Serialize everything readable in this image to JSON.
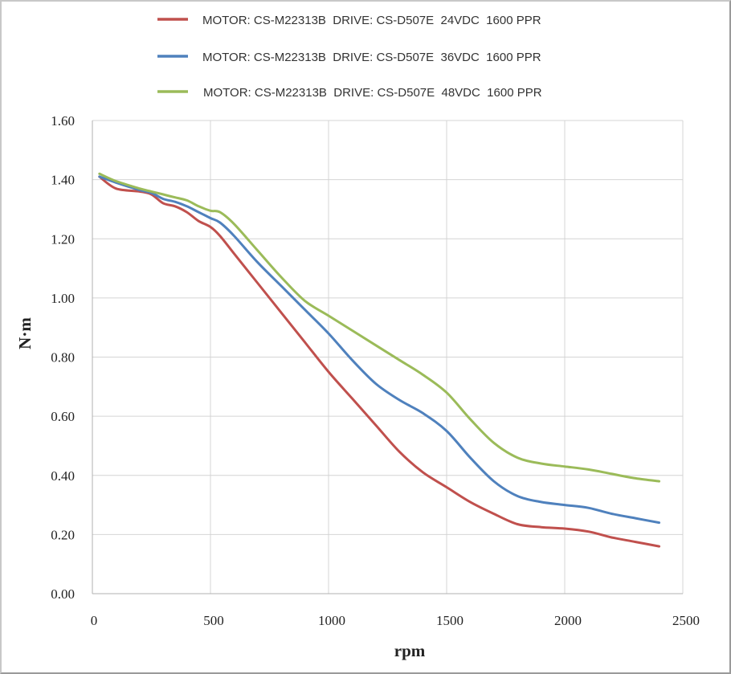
{
  "chart_data": {
    "type": "line",
    "title": "",
    "xlabel": "rpm",
    "ylabel": "N·m",
    "xlim": [
      0,
      2500
    ],
    "ylim": [
      0,
      1.6
    ],
    "x_ticks": [
      "0",
      "500",
      "1000",
      "1500",
      "2000",
      "2500"
    ],
    "y_ticks": [
      "0.00",
      "0.20",
      "0.40",
      "0.60",
      "0.80",
      "1.00",
      "1.20",
      "1.40",
      "1.60"
    ],
    "grid": true,
    "legend_position": "top",
    "series": [
      {
        "name": "MOTOR: CS-M22313B  DRIVE: CS-D507E  24VDC  1600 PPR",
        "color": "#c0504d",
        "x": [
          30,
          100,
          200,
          250,
          300,
          350,
          400,
          450,
          500,
          540,
          600,
          700,
          800,
          900,
          1000,
          1100,
          1200,
          1300,
          1400,
          1500,
          1600,
          1700,
          1800,
          1900,
          2000,
          2100,
          2200,
          2300,
          2400
        ],
        "y": [
          1.41,
          1.37,
          1.36,
          1.35,
          1.32,
          1.31,
          1.29,
          1.26,
          1.24,
          1.21,
          1.15,
          1.05,
          0.95,
          0.85,
          0.75,
          0.66,
          0.57,
          0.48,
          0.41,
          0.36,
          0.31,
          0.27,
          0.235,
          0.225,
          0.22,
          0.21,
          0.19,
          0.175,
          0.16
        ]
      },
      {
        "name": "MOTOR: CS-M22313B  DRIVE: CS-D507E  36VDC  1600 PPR",
        "color": "#4f81bd",
        "x": [
          30,
          100,
          200,
          250,
          300,
          350,
          400,
          450,
          500,
          540,
          600,
          700,
          800,
          900,
          1000,
          1100,
          1200,
          1300,
          1400,
          1500,
          1600,
          1700,
          1800,
          1900,
          2000,
          2100,
          2200,
          2300,
          2400
        ],
        "y": [
          1.41,
          1.39,
          1.365,
          1.355,
          1.335,
          1.325,
          1.31,
          1.29,
          1.27,
          1.255,
          1.21,
          1.12,
          1.04,
          0.96,
          0.88,
          0.79,
          0.71,
          0.655,
          0.61,
          0.55,
          0.46,
          0.38,
          0.33,
          0.31,
          0.3,
          0.29,
          0.27,
          0.255,
          0.24
        ]
      },
      {
        "name": "MOTOR: CS-M22313B  DRIVE: CS-D507E  48VDC  1600 PPR",
        "color": "#9bbb59",
        "x": [
          30,
          100,
          200,
          250,
          300,
          350,
          400,
          450,
          500,
          540,
          600,
          700,
          800,
          900,
          1000,
          1100,
          1200,
          1300,
          1400,
          1500,
          1600,
          1700,
          1800,
          1900,
          2000,
          2100,
          2200,
          2300,
          2400
        ],
        "y": [
          1.42,
          1.395,
          1.37,
          1.36,
          1.35,
          1.34,
          1.33,
          1.31,
          1.295,
          1.29,
          1.25,
          1.16,
          1.07,
          0.99,
          0.94,
          0.89,
          0.84,
          0.79,
          0.74,
          0.68,
          0.59,
          0.51,
          0.46,
          0.44,
          0.43,
          0.42,
          0.405,
          0.39,
          0.38
        ]
      }
    ]
  }
}
